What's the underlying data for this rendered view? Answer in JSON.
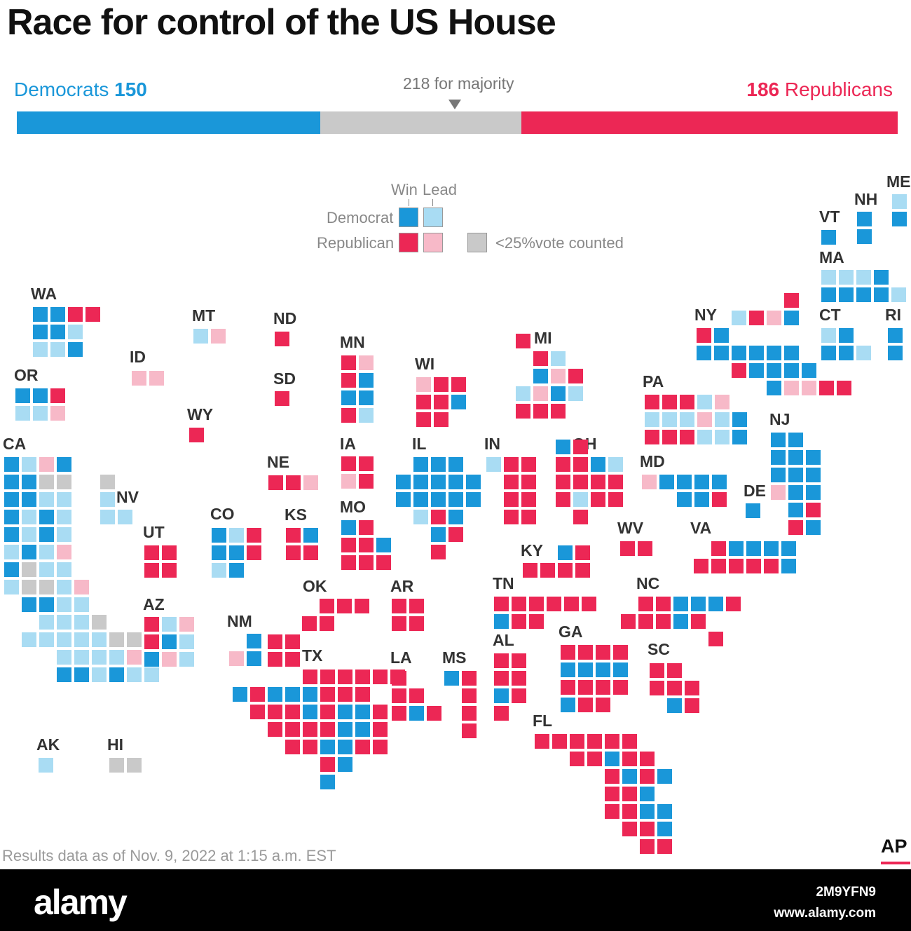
{
  "title": "Race for control of the US House",
  "tally": {
    "dem_name": "Democrats",
    "dem_seats": "150",
    "rep_seats": "186",
    "rep_name": "Republicans",
    "majority_label": "218 for majority",
    "total_seats": 435,
    "dem_count": 150,
    "rep_count": 186
  },
  "colors": {
    "dem_win": "#1a97d9",
    "dem_lead": "#a9dcf3",
    "rep_win": "#ec2755",
    "rep_lead": "#f7b9c8",
    "uncounted": "#c9c9c9"
  },
  "legend": {
    "win": "Win",
    "lead": "Lead",
    "democrat": "Democrat",
    "republican": "Republican",
    "uncounted": "<25%vote counted"
  },
  "states": [
    {
      "id": "WA",
      "label": "WA",
      "rows": [
        "DDRR",
        "DDd",
        "ddD"
      ]
    },
    {
      "id": "OR",
      "label": "OR",
      "rows": [
        "DDR",
        "ddr"
      ]
    },
    {
      "id": "CA",
      "label": "CA",
      "rows": [
        "DdrD",
        "DDGG",
        "DDdd",
        "DdDd",
        "DdDd",
        "dDdr",
        "DGdd",
        "dGGdr",
        "DDdd",
        "dddG",
        "dddddGG",
        "ddddr",
        "DDdDdd"
      ]
    },
    {
      "id": "ID",
      "label": "ID",
      "rows": [
        "rr"
      ]
    },
    {
      "id": "NV",
      "label": "NV",
      "rows": [
        "G",
        "d",
        "dd"
      ]
    },
    {
      "id": "MT",
      "label": "MT",
      "rows": [
        "dr"
      ]
    },
    {
      "id": "WY",
      "label": "WY",
      "rows": [
        "R"
      ]
    },
    {
      "id": "UT",
      "label": "UT",
      "rows": [
        "RR",
        "RR"
      ]
    },
    {
      "id": "CO",
      "label": "CO",
      "rows": [
        "DdR",
        "DDR",
        "dD"
      ]
    },
    {
      "id": "AZ",
      "label": "AZ",
      "rows": [
        "Rdr",
        "RDd",
        "Drd"
      ]
    },
    {
      "id": "NM",
      "label": "NM",
      "rows": [
        "D",
        "rD"
      ]
    },
    {
      "id": "ND",
      "label": "ND",
      "rows": [
        "R"
      ]
    },
    {
      "id": "SD",
      "label": "SD",
      "rows": [
        "R"
      ]
    },
    {
      "id": "NE",
      "label": "NE",
      "rows": [
        "RRr"
      ]
    },
    {
      "id": "KS",
      "label": "KS",
      "rows": [
        "RD",
        "RR"
      ]
    },
    {
      "id": "OK",
      "label": "OK",
      "rows": [
        "RRR",
        "RR"
      ]
    },
    {
      "id": "TX",
      "label": "TX",
      "rows": [
        "RR",
        "RR",
        "RRRRRR",
        "DRDDDRRR",
        "RRRDRDDR",
        "RRRRDDR",
        "RRDDRR",
        "RD",
        "D"
      ]
    },
    {
      "id": "MN",
      "label": "MN",
      "rows": [
        "Rr",
        "RD",
        "DD",
        "Rd"
      ]
    },
    {
      "id": "IA",
      "label": "IA",
      "rows": [
        "RR",
        "rR"
      ]
    },
    {
      "id": "MO",
      "label": "MO",
      "rows": [
        "DR",
        "RRD",
        "RRR"
      ]
    },
    {
      "id": "AR",
      "label": "AR",
      "rows": [
        "RR",
        "RR"
      ]
    },
    {
      "id": "LA",
      "label": "LA",
      "rows": [
        "R",
        "RR",
        "RDR"
      ]
    },
    {
      "id": "WI",
      "label": "WI",
      "rows": [
        "rRR",
        "RRD",
        "RR"
      ]
    },
    {
      "id": "IL",
      "label": "IL",
      "rows": [
        "DDD",
        "DDDDD",
        "DDDDD",
        "dRD",
        "DR",
        "R"
      ]
    },
    {
      "id": "MS",
      "label": "MS",
      "rows": [
        "DR",
        "R",
        "R",
        "R"
      ]
    },
    {
      "id": "MI",
      "label": "MI",
      "rows": [
        "R",
        "Rd",
        "DrR",
        "drDd",
        "RRR"
      ]
    },
    {
      "id": "IN",
      "label": "IN",
      "rows": [
        "dRR",
        "RR",
        "RR",
        "RR"
      ]
    },
    {
      "id": "OH",
      "label": "OH",
      "rows": [
        "DR",
        "RRDd",
        "RRRR",
        "RdRR",
        "R"
      ]
    },
    {
      "id": "KY",
      "label": "KY",
      "rows": [
        "DR",
        "RRRR"
      ]
    },
    {
      "id": "TN",
      "label": "TN",
      "rows": [
        "RRRRRR",
        "DRR"
      ]
    },
    {
      "id": "AL",
      "label": "AL",
      "rows": [
        "RR",
        "RR",
        "DR",
        "R"
      ]
    },
    {
      "id": "GA",
      "label": "GA",
      "rows": [
        "RRRR",
        "DDDD",
        "RRRR",
        "DRR"
      ]
    },
    {
      "id": "FL",
      "label": "FL",
      "rows": [
        "RRRRRR",
        "RRDRR",
        "RDRD",
        "RRD",
        "RRDD",
        "RRD",
        "RR"
      ]
    },
    {
      "id": "SC",
      "label": "SC",
      "rows": [
        "RR",
        "RRR",
        "DR"
      ]
    },
    {
      "id": "NC",
      "label": "NC",
      "rows": [
        "RRDDDR",
        "RRRDR",
        "R"
      ]
    },
    {
      "id": "VA",
      "label": "VA",
      "rows": [
        "RDDDD",
        "RRRRRD"
      ]
    },
    {
      "id": "WV",
      "label": "WV",
      "rows": [
        "RR"
      ]
    },
    {
      "id": "MD",
      "label": "MD",
      "rows": [
        "rDDDD",
        "DDR"
      ]
    },
    {
      "id": "DE",
      "label": "DE",
      "rows": [
        "D"
      ]
    },
    {
      "id": "PA",
      "label": "PA",
      "rows": [
        "RRRdr",
        "dddrdD",
        "RRRddD"
      ]
    },
    {
      "id": "NJ",
      "label": "NJ",
      "rows": [
        "DD",
        "DDD",
        "DDD",
        "rDD",
        "DR",
        "RD"
      ]
    },
    {
      "id": "NY",
      "label": "NY",
      "rows": [
        "R",
        "dRrD",
        "RD",
        "DDDDDD",
        "RDDDD",
        "DrrRR"
      ]
    },
    {
      "id": "CT",
      "label": "CT",
      "rows": [
        "dD",
        "DDd"
      ]
    },
    {
      "id": "RI",
      "label": "RI",
      "rows": [
        "D",
        "D"
      ]
    },
    {
      "id": "MA",
      "label": "MA",
      "rows": [
        "dddD",
        "DDDDd"
      ]
    },
    {
      "id": "VT",
      "label": "VT",
      "rows": [
        "D"
      ]
    },
    {
      "id": "NH",
      "label": "NH",
      "rows": [
        "D",
        "D"
      ]
    },
    {
      "id": "ME",
      "label": "ME",
      "rows": [
        "d",
        "D"
      ]
    },
    {
      "id": "AK",
      "label": "AK",
      "rows": [
        "d"
      ]
    },
    {
      "id": "HI",
      "label": "HI",
      "rows": [
        "GG"
      ]
    }
  ],
  "footnote": "Results data as of Nov. 9, 2022 at 1:15 a.m. EST",
  "source": "AP",
  "watermark": {
    "brand": "alamy",
    "image_id": "2M9YFN9",
    "site": "www.alamy.com"
  }
}
